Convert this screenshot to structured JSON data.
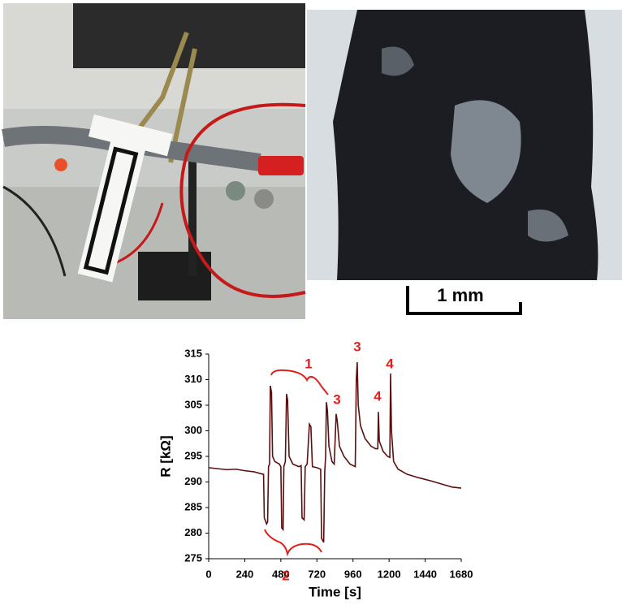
{
  "scale_bar_label": "1 mm",
  "chart_data": {
    "type": "line",
    "xlabel": "Time [s]",
    "ylabel": "R [kΩ]",
    "x": [
      0,
      60,
      120,
      180,
      240,
      300,
      350,
      365,
      370,
      385,
      392,
      398,
      405,
      410,
      418,
      425,
      440,
      470,
      480,
      486,
      495,
      500,
      510,
      518,
      525,
      535,
      560,
      600,
      615,
      621,
      635,
      642,
      655,
      670,
      680,
      690,
      720,
      745,
      751,
      765,
      772,
      778,
      783,
      790,
      800,
      820,
      835,
      848,
      855,
      870,
      900,
      940,
      975,
      982,
      988,
      995,
      1010,
      1040,
      1080,
      1110,
      1125,
      1129,
      1135,
      1160,
      1190,
      1205,
      1210,
      1216,
      1230,
      1260,
      1320,
      1400,
      1480,
      1560,
      1620,
      1680
    ],
    "values": [
      292.8,
      292.6,
      292.4,
      292.5,
      292.2,
      292.0,
      291.6,
      291.5,
      283,
      281.8,
      282.2,
      293,
      293.5,
      308.8,
      307.5,
      295,
      294,
      293.5,
      293,
      281,
      280.7,
      293,
      294,
      307.2,
      306,
      295,
      293.5,
      293,
      293.2,
      283,
      282.6,
      293,
      293.5,
      301.3,
      300.8,
      293,
      292.8,
      292.5,
      279,
      278.2,
      292,
      295,
      305.6,
      304,
      297,
      294,
      293.5,
      303.3,
      302,
      297,
      295,
      293.5,
      293,
      310,
      313.4,
      305,
      301,
      298.5,
      297,
      296.5,
      296.5,
      303.7,
      298,
      296,
      295,
      294.8,
      311.2,
      300,
      294,
      292.5,
      291.5,
      290.8,
      290.2,
      289.5,
      289,
      288.8
    ],
    "color": "#5a1010",
    "annotations": [
      "1",
      "2",
      "3",
      "3",
      "4",
      "4"
    ],
    "annotation_color": "#e0201c",
    "xlim": [
      0,
      1680
    ],
    "xticks": [
      0,
      240,
      480,
      720,
      960,
      1200,
      1440,
      1680
    ],
    "ylim": [
      275,
      315
    ],
    "yticks": [
      275,
      280,
      285,
      290,
      295,
      300,
      305,
      310,
      315
    ],
    "grid": false
  }
}
